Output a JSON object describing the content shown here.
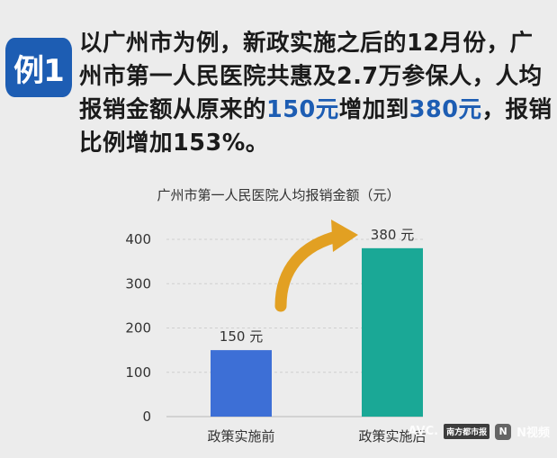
{
  "badge": {
    "label": "例1"
  },
  "intro": {
    "part1": "以广州市为例，新政实施之后的12月份，广州市第一人民医院共惠及2.7万参保人，人均报销金额从原来的",
    "hl1": "150元",
    "part2": "增加到",
    "hl2": "380元",
    "part3": "，报销比例增加153%。"
  },
  "chart_data": {
    "type": "bar",
    "title": "广州市第一人民医院人均报销金额（元）",
    "categories": [
      "政策实施前",
      "政策实施后"
    ],
    "values": [
      150,
      380
    ],
    "data_labels": [
      "150 元",
      "380 元"
    ],
    "bar_colors": [
      "#3d6fd6",
      "#1aa896"
    ],
    "yticks": [
      0,
      100,
      200,
      300,
      400
    ],
    "ylim": [
      0,
      400
    ],
    "grid": true,
    "arrow_color": "#e2a022"
  },
  "watermark": {
    "brand": "AVC.",
    "tag": "南方都市报",
    "app": "N视频"
  }
}
